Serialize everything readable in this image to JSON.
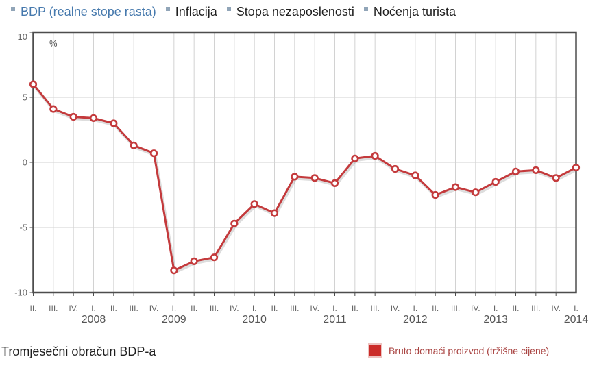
{
  "nav": {
    "items": [
      {
        "label": "BDP (realne stope rasta)",
        "active": true
      },
      {
        "label": "Inflacija",
        "active": false
      },
      {
        "label": "Stopa nezaposlenosti",
        "active": false
      },
      {
        "label": "Noćenja turista",
        "active": false
      }
    ]
  },
  "chart_data": {
    "type": "line",
    "title": "",
    "ylabel": "%",
    "xlabel": "",
    "ylim": [
      -10,
      10
    ],
    "yticks": [
      10,
      5,
      0,
      -5,
      -10
    ],
    "grid": true,
    "legend_position": "bottom-right",
    "categories": [
      "II.",
      "III.",
      "IV.",
      "I.",
      "II.",
      "III.",
      "IV.",
      "I.",
      "II.",
      "III.",
      "IV.",
      "I.",
      "II.",
      "III.",
      "IV.",
      "I.",
      "II.",
      "III.",
      "IV.",
      "I.",
      "II.",
      "III.",
      "IV.",
      "I.",
      "II.",
      "III.",
      "IV.",
      "I."
    ],
    "year_ticks": [
      {
        "label": "2008",
        "index": 3
      },
      {
        "label": "2009",
        "index": 7
      },
      {
        "label": "2010",
        "index": 11
      },
      {
        "label": "2011",
        "index": 15
      },
      {
        "label": "2012",
        "index": 19
      },
      {
        "label": "2013",
        "index": 23
      },
      {
        "label": "2014",
        "index": 27
      }
    ],
    "series": [
      {
        "name": "Bruto domaći proizvod (tržišne cijene)",
        "color": "#c43a3c",
        "values": [
          6.0,
          4.1,
          3.5,
          3.4,
          3.0,
          1.3,
          0.7,
          -8.3,
          -7.6,
          -7.3,
          -4.7,
          -3.2,
          -3.9,
          -1.1,
          -1.2,
          -1.6,
          0.3,
          0.5,
          -0.5,
          -1.0,
          -2.5,
          -1.9,
          -2.3,
          -1.5,
          -0.7,
          -0.6,
          -1.2,
          -0.4
        ]
      }
    ]
  },
  "footer": {
    "caption": "Tromjesečni obračun BDP-a",
    "legend": {
      "label": "Bruto domaći proizvod (tržišne cijene)",
      "color": "#cb2b28"
    }
  },
  "colors": {
    "tab_active": "#4679ad",
    "text_dark": "#1f1f1f",
    "axis_text": "#666666",
    "year_text": "#555555",
    "line_red": "#c43a3c",
    "legend_square": "#cb2b28",
    "legend_text": "#a94442",
    "bullet_gray": "#91a5b8",
    "grid": "#d2d2d2",
    "border": "#4d4d4d"
  }
}
